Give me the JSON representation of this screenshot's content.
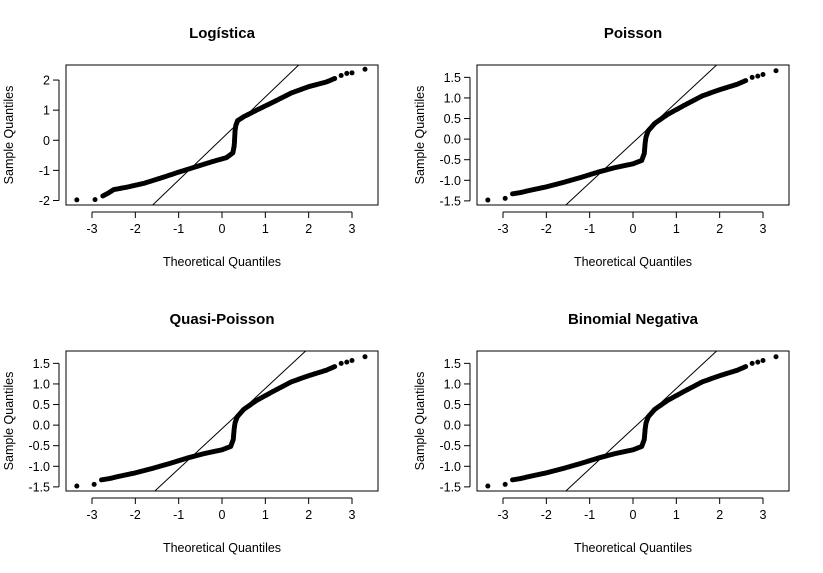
{
  "chart_data": [
    {
      "type": "scatter",
      "title": "Logística",
      "xlabel": "Theoretical Quantiles",
      "ylabel": "Sample Quantiles",
      "xlim": [
        -3.6,
        3.6
      ],
      "ylim": [
        -2.15,
        2.5
      ],
      "xticks": [
        -3,
        -2,
        -1,
        0,
        1,
        2,
        3
      ],
      "yticks": [
        -2,
        -1,
        0,
        1,
        2
      ],
      "ytick_labels": [
        "-2",
        "-1",
        "0",
        "1",
        "2"
      ],
      "reference_line": {
        "points": [
          [
            -1.6,
            -2.15
          ],
          [
            1.77,
            2.5
          ]
        ]
      },
      "points": [
        [
          -3.35,
          -1.98
        ],
        [
          -2.93,
          -1.97
        ],
        [
          -2.75,
          -1.85
        ],
        [
          -2.62,
          -1.75
        ],
        [
          -2.5,
          -1.64
        ],
        [
          -2.2,
          -1.56
        ],
        [
          -1.8,
          -1.43
        ],
        [
          -1.4,
          -1.25
        ],
        [
          -1.0,
          -1.06
        ],
        [
          -0.6,
          -0.88
        ],
        [
          -0.2,
          -0.7
        ],
        [
          0.1,
          -0.58
        ],
        [
          0.25,
          -0.42
        ],
        [
          0.28,
          -0.2
        ],
        [
          0.29,
          0.0
        ],
        [
          0.3,
          0.3
        ],
        [
          0.32,
          0.5
        ],
        [
          0.36,
          0.65
        ],
        [
          0.5,
          0.78
        ],
        [
          0.8,
          1.0
        ],
        [
          1.2,
          1.28
        ],
        [
          1.6,
          1.57
        ],
        [
          2.0,
          1.78
        ],
        [
          2.4,
          1.93
        ],
        [
          2.6,
          2.05
        ],
        [
          2.75,
          2.15
        ],
        [
          2.88,
          2.22
        ],
        [
          3.0,
          2.24
        ],
        [
          3.3,
          2.36
        ]
      ]
    },
    {
      "type": "scatter",
      "title": "Poisson",
      "xlabel": "Theoretical Quantiles",
      "ylabel": "Sample Quantiles",
      "xlim": [
        -3.6,
        3.6
      ],
      "ylim": [
        -1.6,
        1.8
      ],
      "xticks": [
        -3,
        -2,
        -1,
        0,
        1,
        2,
        3
      ],
      "yticks": [
        -1.5,
        -1.0,
        -0.5,
        0.0,
        0.5,
        1.0,
        1.5
      ],
      "ytick_labels": [
        "-1.5",
        "-1.0",
        "-0.5",
        "0.0",
        "0.5",
        "1.0",
        "1.5"
      ],
      "reference_line": {
        "points": [
          [
            -1.55,
            -1.6
          ],
          [
            1.93,
            1.8
          ]
        ]
      },
      "points": [
        [
          -3.35,
          -1.48
        ],
        [
          -2.95,
          -1.44
        ],
        [
          -2.78,
          -1.33
        ],
        [
          -2.6,
          -1.3
        ],
        [
          -2.4,
          -1.25
        ],
        [
          -2.0,
          -1.16
        ],
        [
          -1.6,
          -1.05
        ],
        [
          -1.2,
          -0.93
        ],
        [
          -0.8,
          -0.8
        ],
        [
          -0.4,
          -0.69
        ],
        [
          0.0,
          -0.6
        ],
        [
          0.2,
          -0.52
        ],
        [
          0.26,
          -0.35
        ],
        [
          0.28,
          -0.1
        ],
        [
          0.3,
          0.05
        ],
        [
          0.35,
          0.2
        ],
        [
          0.5,
          0.38
        ],
        [
          0.8,
          0.6
        ],
        [
          1.2,
          0.83
        ],
        [
          1.6,
          1.05
        ],
        [
          2.0,
          1.2
        ],
        [
          2.4,
          1.33
        ],
        [
          2.6,
          1.42
        ],
        [
          2.75,
          1.5
        ],
        [
          2.88,
          1.53
        ],
        [
          3.0,
          1.57
        ],
        [
          3.3,
          1.66
        ]
      ]
    },
    {
      "type": "scatter",
      "title": "Quasi-Poisson",
      "xlabel": "Theoretical Quantiles",
      "ylabel": "Sample Quantiles",
      "xlim": [
        -3.6,
        3.6
      ],
      "ylim": [
        -1.6,
        1.8
      ],
      "xticks": [
        -3,
        -2,
        -1,
        0,
        1,
        2,
        3
      ],
      "yticks": [
        -1.5,
        -1.0,
        -0.5,
        0.0,
        0.5,
        1.0,
        1.5
      ],
      "ytick_labels": [
        "-1.5",
        "-1.0",
        "-0.5",
        "0.0",
        "0.5",
        "1.0",
        "1.5"
      ],
      "reference_line": {
        "points": [
          [
            -1.55,
            -1.6
          ],
          [
            1.93,
            1.8
          ]
        ]
      },
      "points": [
        [
          -3.35,
          -1.48
        ],
        [
          -2.95,
          -1.44
        ],
        [
          -2.78,
          -1.33
        ],
        [
          -2.6,
          -1.3
        ],
        [
          -2.4,
          -1.25
        ],
        [
          -2.0,
          -1.16
        ],
        [
          -1.6,
          -1.05
        ],
        [
          -1.2,
          -0.93
        ],
        [
          -0.8,
          -0.8
        ],
        [
          -0.4,
          -0.69
        ],
        [
          0.0,
          -0.6
        ],
        [
          0.2,
          -0.52
        ],
        [
          0.26,
          -0.35
        ],
        [
          0.28,
          -0.1
        ],
        [
          0.3,
          0.05
        ],
        [
          0.35,
          0.2
        ],
        [
          0.5,
          0.38
        ],
        [
          0.8,
          0.6
        ],
        [
          1.2,
          0.83
        ],
        [
          1.6,
          1.05
        ],
        [
          2.0,
          1.2
        ],
        [
          2.4,
          1.33
        ],
        [
          2.6,
          1.42
        ],
        [
          2.75,
          1.5
        ],
        [
          2.88,
          1.53
        ],
        [
          3.0,
          1.57
        ],
        [
          3.3,
          1.66
        ]
      ]
    },
    {
      "type": "scatter",
      "title": "Binomial Negativa",
      "xlabel": "Theoretical Quantiles",
      "ylabel": "Sample Quantiles",
      "xlim": [
        -3.6,
        3.6
      ],
      "ylim": [
        -1.6,
        1.8
      ],
      "xticks": [
        -3,
        -2,
        -1,
        0,
        1,
        2,
        3
      ],
      "yticks": [
        -1.5,
        -1.0,
        -0.5,
        0.0,
        0.5,
        1.0,
        1.5
      ],
      "ytick_labels": [
        "-1.5",
        "-1.0",
        "-0.5",
        "0.0",
        "0.5",
        "1.0",
        "1.5"
      ],
      "reference_line": {
        "points": [
          [
            -1.55,
            -1.6
          ],
          [
            1.93,
            1.8
          ]
        ]
      },
      "points": [
        [
          -3.35,
          -1.48
        ],
        [
          -2.95,
          -1.44
        ],
        [
          -2.78,
          -1.33
        ],
        [
          -2.6,
          -1.3
        ],
        [
          -2.4,
          -1.25
        ],
        [
          -2.0,
          -1.16
        ],
        [
          -1.6,
          -1.05
        ],
        [
          -1.2,
          -0.93
        ],
        [
          -0.8,
          -0.8
        ],
        [
          -0.4,
          -0.69
        ],
        [
          0.0,
          -0.6
        ],
        [
          0.2,
          -0.52
        ],
        [
          0.26,
          -0.35
        ],
        [
          0.28,
          -0.1
        ],
        [
          0.3,
          0.05
        ],
        [
          0.35,
          0.2
        ],
        [
          0.5,
          0.38
        ],
        [
          0.8,
          0.6
        ],
        [
          1.2,
          0.83
        ],
        [
          1.6,
          1.05
        ],
        [
          2.0,
          1.2
        ],
        [
          2.4,
          1.33
        ],
        [
          2.6,
          1.42
        ],
        [
          2.75,
          1.5
        ],
        [
          2.88,
          1.53
        ],
        [
          3.0,
          1.57
        ],
        [
          3.3,
          1.66
        ]
      ]
    }
  ]
}
